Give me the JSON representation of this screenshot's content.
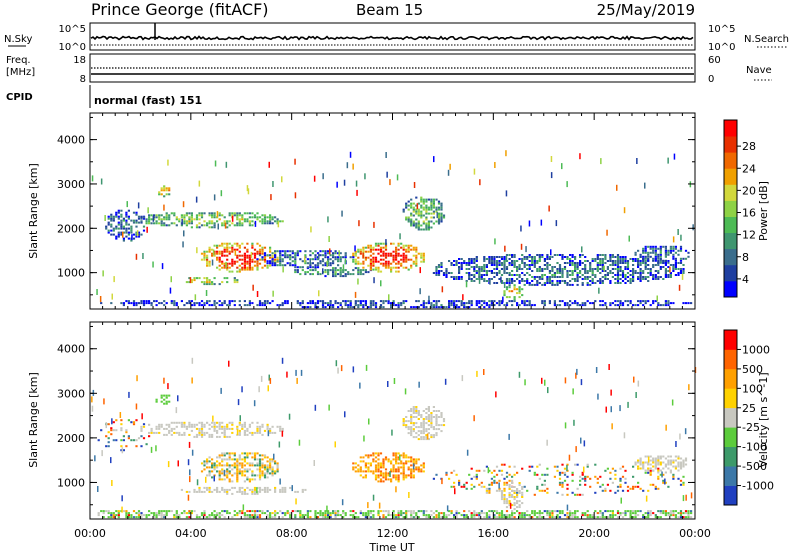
{
  "header": {
    "station": "Prince George (fitACF)",
    "beam": "Beam 15",
    "date": "25/May/2019"
  },
  "nsky_panel": {
    "left_label": "N.Sky",
    "left_ticks": [
      "10^5",
      "10^0"
    ],
    "right_label": "N.Search",
    "right_ticks": [
      "10^5",
      "10^0"
    ]
  },
  "freq_panel": {
    "left_label_1": "Freq.",
    "left_label_2": "[MHz]",
    "left_ticks": [
      "18",
      "8"
    ],
    "right_label": "Nave",
    "right_ticks": [
      "60",
      "0"
    ]
  },
  "cpid_panel": {
    "label": "CPID",
    "value": "normal (fast) 151"
  },
  "chart_data": [
    {
      "type": "heatmap",
      "name": "power",
      "ylabel": "Slant Range [km]",
      "xlabel": "",
      "yticks": [
        "4000",
        "3000",
        "2000",
        "1000"
      ],
      "xlim_hours": [
        0,
        24
      ],
      "ylim_km": [
        180,
        4600
      ],
      "colorbar": {
        "label": "Power [dB]",
        "ticks": [
          "28",
          "24",
          "20",
          "16",
          "12",
          "8",
          "4"
        ],
        "colors": [
          "#0000ff",
          "#1f3fa0",
          "#3a6d8c",
          "#3f9670",
          "#4dbb55",
          "#8ed245",
          "#d2d83c",
          "#f0a000",
          "#f06800",
          "#e83000",
          "#ff0000"
        ]
      },
      "regions": [
        {
          "t0": 0.3,
          "t1": 23.9,
          "r0": 200,
          "r1": 380,
          "level": 0.12
        },
        {
          "t0": 0.6,
          "t1": 2.2,
          "r0": 1700,
          "r1": 2400,
          "level": 0.2
        },
        {
          "t0": 2.0,
          "t1": 7.6,
          "r0": 2000,
          "r1": 2350,
          "level": 0.45
        },
        {
          "t0": 4.4,
          "t1": 7.4,
          "r0": 1000,
          "r1": 1650,
          "level": 0.85
        },
        {
          "t0": 3.6,
          "t1": 6.0,
          "r0": 720,
          "r1": 880,
          "level": 0.55
        },
        {
          "t0": 8.0,
          "t1": 11.2,
          "r0": 900,
          "r1": 1100,
          "level": 0.3
        },
        {
          "t0": 10.4,
          "t1": 13.2,
          "r0": 1000,
          "r1": 1650,
          "level": 0.85
        },
        {
          "t0": 12.4,
          "t1": 14.0,
          "r0": 1950,
          "r1": 2700,
          "level": 0.4
        },
        {
          "t0": 2.6,
          "t1": 3.2,
          "r0": 2700,
          "r1": 2950,
          "level": 0.7
        },
        {
          "t0": 13.6,
          "t1": 23.6,
          "r0": 700,
          "r1": 1400,
          "level": 0.22
        },
        {
          "t0": 6.6,
          "t1": 10.4,
          "r0": 1100,
          "r1": 1500,
          "level": 0.22
        },
        {
          "t0": 16.3,
          "t1": 17.2,
          "r0": 380,
          "r1": 700,
          "level": 0.55
        },
        {
          "t0": 21.6,
          "t1": 23.8,
          "r0": 1200,
          "r1": 1600,
          "level": 0.22
        }
      ]
    },
    {
      "type": "heatmap",
      "name": "velocity",
      "ylabel": "Slant Range [km]",
      "xlabel": "Time UT",
      "xticks": [
        "00:00",
        "04:00",
        "08:00",
        "12:00",
        "16:00",
        "20:00",
        "00:00"
      ],
      "yticks": [
        "4000",
        "3000",
        "2000",
        "1000"
      ],
      "xlim_hours": [
        0,
        24
      ],
      "ylim_km": [
        180,
        4600
      ],
      "colorbar": {
        "label": "Velocity [m s^-1]",
        "ticks": [
          "1000",
          "500",
          "100",
          "25",
          "-25",
          "-100",
          "-500",
          "-1000"
        ],
        "colors": [
          "#2040c0",
          "#3c78a8",
          "#3d9a6a",
          "#5ccc3c",
          "#c8c8c0",
          "#ffd200",
          "#ffa000",
          "#ff6400",
          "#ff0000"
        ]
      },
      "regions": [
        {
          "t0": 0.3,
          "t1": 23.9,
          "r0": 200,
          "r1": 380,
          "kind": "ground"
        },
        {
          "t0": 2.0,
          "t1": 7.6,
          "r0": 2000,
          "r1": 2350,
          "kind": "gray"
        },
        {
          "t0": 4.4,
          "t1": 7.4,
          "r0": 1000,
          "r1": 1650,
          "kind": "mix"
        },
        {
          "t0": 3.6,
          "t1": 8.6,
          "r0": 720,
          "r1": 880,
          "kind": "gray"
        },
        {
          "t0": 10.4,
          "t1": 13.2,
          "r0": 1000,
          "r1": 1650,
          "kind": "orange"
        },
        {
          "t0": 12.4,
          "t1": 14.0,
          "r0": 1950,
          "r1": 2700,
          "kind": "gray"
        },
        {
          "t0": 13.6,
          "t1": 23.6,
          "r0": 700,
          "r1": 1400,
          "kind": "sparse"
        },
        {
          "t0": 2.6,
          "t1": 3.2,
          "r0": 2700,
          "r1": 2950,
          "kind": "green"
        },
        {
          "t0": 16.3,
          "t1": 17.2,
          "r0": 380,
          "r1": 1000,
          "kind": "gray"
        },
        {
          "t0": 0.2,
          "t1": 2.4,
          "r0": 1700,
          "r1": 2400,
          "kind": "sparse"
        },
        {
          "t0": 21.6,
          "t1": 23.8,
          "r0": 1200,
          "r1": 1600,
          "kind": "gray"
        }
      ]
    }
  ]
}
